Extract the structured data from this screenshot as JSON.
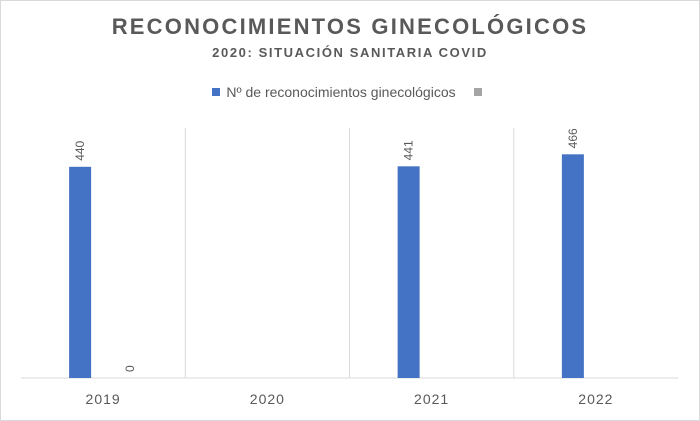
{
  "chart_data": {
    "type": "bar",
    "title": "RECONOCIMIENTOS GINECOLÓGICOS",
    "subtitle": "2020: SITUACIÓN SANITARIA COVID",
    "categories": [
      "2019",
      "2020",
      "2021",
      "2022"
    ],
    "series": [
      {
        "name": "Nº de reconocimientos ginecológicos",
        "color": "#4472c4",
        "values": [
          440,
          null,
          441,
          466
        ],
        "labels": [
          "440",
          "",
          "441",
          "466"
        ]
      },
      {
        "name": "",
        "color": "#a5a5a5",
        "values": [
          0,
          null,
          null,
          null
        ],
        "labels": [
          "0",
          "",
          "",
          ""
        ]
      }
    ],
    "ylim": [
      0,
      500
    ],
    "grid": "vertical-category-separators",
    "legend_position": "top"
  }
}
